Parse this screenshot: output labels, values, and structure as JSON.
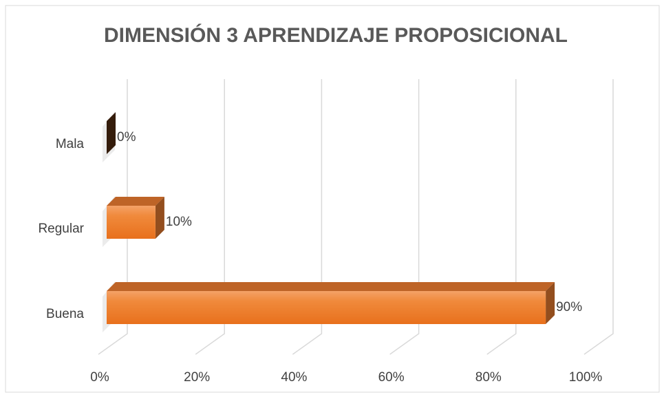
{
  "chart_data": {
    "type": "bar3d_horizontal",
    "title": "DIMENSIÓN 3 APRENDIZAJE PROPOSICIONAL",
    "categories": [
      "Mala",
      "Regular",
      "Buena"
    ],
    "values": [
      0,
      10,
      90
    ],
    "value_labels": [
      "0%",
      "10%",
      "90%"
    ],
    "color": "#ed7d31",
    "xlim": [
      0,
      100
    ],
    "xticks": [
      {
        "value": 0,
        "label": "0%"
      },
      {
        "value": 20,
        "label": "20%"
      },
      {
        "value": 40,
        "label": "40%"
      },
      {
        "value": 60,
        "label": "60%"
      },
      {
        "value": 80,
        "label": "80%"
      },
      {
        "value": 100,
        "label": "100%"
      }
    ],
    "grid": true
  }
}
